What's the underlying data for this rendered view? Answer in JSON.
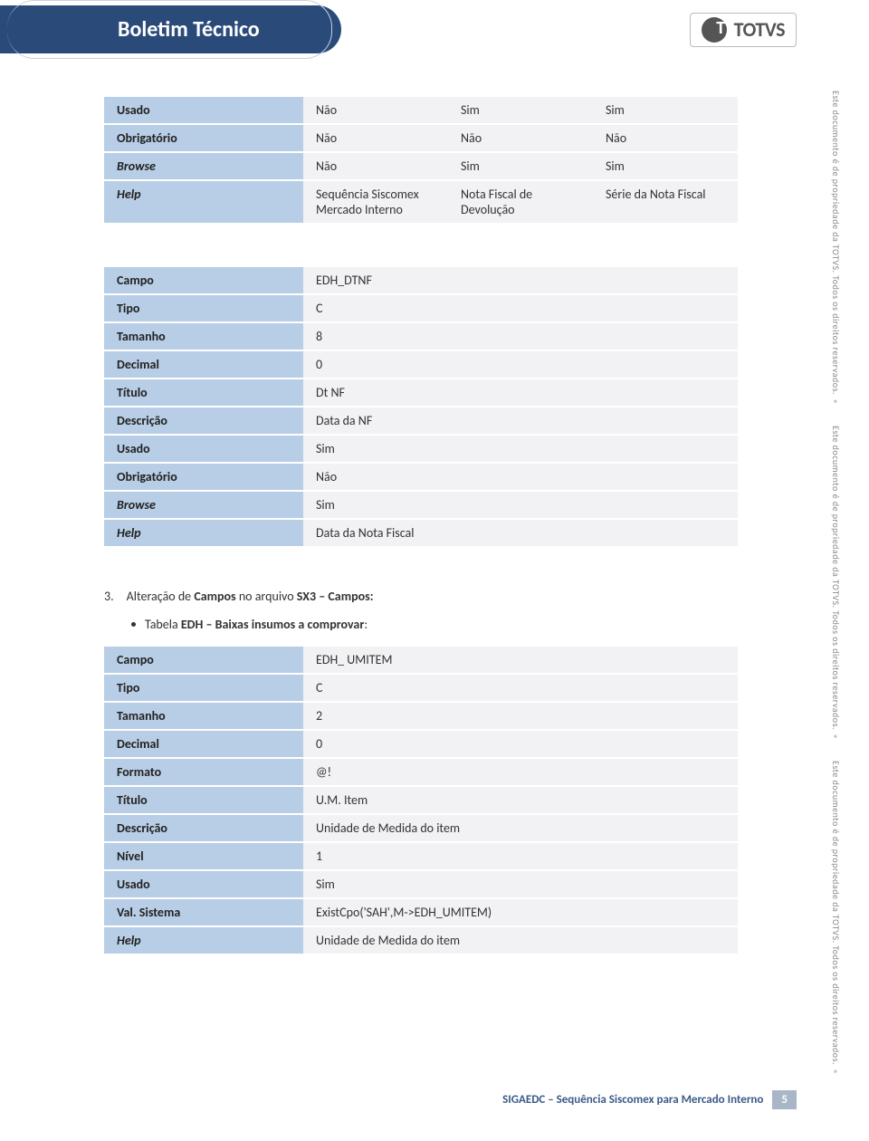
{
  "header": {
    "title": "Boletim Técnico",
    "logo": "TOTVS"
  },
  "side_note": "Este documento é de propriedade da TOTVS. Todos os direitos reservados. ®",
  "table1": {
    "rows": [
      {
        "label": "Usado",
        "italic": false,
        "v1": "Não",
        "v2": "Sim",
        "v3": "Sim"
      },
      {
        "label": "Obrigatório",
        "italic": false,
        "v1": "Não",
        "v2": "Não",
        "v3": "Não"
      },
      {
        "label": "Browse",
        "italic": true,
        "v1": "Não",
        "v2": "Sim",
        "v3": "Sim"
      },
      {
        "label": "Help",
        "italic": true,
        "v1": "Sequência Siscomex Mercado Interno",
        "v2": "Nota Fiscal de Devolução",
        "v3": "Série da Nota Fiscal"
      }
    ]
  },
  "table2": {
    "rows": [
      {
        "label": "Campo",
        "italic": false,
        "val": "EDH_DTNF"
      },
      {
        "label": "Tipo",
        "italic": false,
        "val": "C"
      },
      {
        "label": "Tamanho",
        "italic": false,
        "val": "8"
      },
      {
        "label": "Decimal",
        "italic": false,
        "val": "0"
      },
      {
        "label": "Título",
        "italic": false,
        "val": "Dt NF"
      },
      {
        "label": "Descrição",
        "italic": false,
        "val": "Data da NF"
      },
      {
        "label": "Usado",
        "italic": false,
        "val": "Sim"
      },
      {
        "label": "Obrigatório",
        "italic": false,
        "val": "Não"
      },
      {
        "label": "Browse",
        "italic": true,
        "val": "Sim"
      },
      {
        "label": "Help",
        "italic": true,
        "val": "Data da Nota Fiscal"
      }
    ]
  },
  "section": {
    "num": "3.",
    "text_pre": "Alteração de ",
    "text_b1": "Campos",
    "text_mid": " no arquivo ",
    "text_b2": "SX3 – Campos:",
    "bullet_pre": "Tabela ",
    "bullet_b": "EDH – Baixas insumos a comprovar",
    "bullet_post": ":"
  },
  "table3": {
    "rows": [
      {
        "label": "Campo",
        "italic": false,
        "val": "EDH_ UMITEM"
      },
      {
        "label": "Tipo",
        "italic": false,
        "val": "C"
      },
      {
        "label": "Tamanho",
        "italic": false,
        "val": "2"
      },
      {
        "label": "Decimal",
        "italic": false,
        "val": "0"
      },
      {
        "label": "Formato",
        "italic": false,
        "val": "@!"
      },
      {
        "label": "Título",
        "italic": false,
        "val": "U.M. Item"
      },
      {
        "label": "Descrição",
        "italic": false,
        "val": "Unidade de Medida do item"
      },
      {
        "label": "Nível",
        "italic": false,
        "val": "1"
      },
      {
        "label": "Usado",
        "italic": false,
        "val": "Sim"
      },
      {
        "label": "Val. Sistema",
        "italic": false,
        "val": "ExistCpo('SAH',M->EDH_UMITEM)"
      },
      {
        "label": "Help",
        "italic": true,
        "val": "Unidade de Medida do item"
      }
    ]
  },
  "footer": {
    "text": "SIGAEDC – Sequência Siscomex para Mercado Interno",
    "page": "5"
  }
}
